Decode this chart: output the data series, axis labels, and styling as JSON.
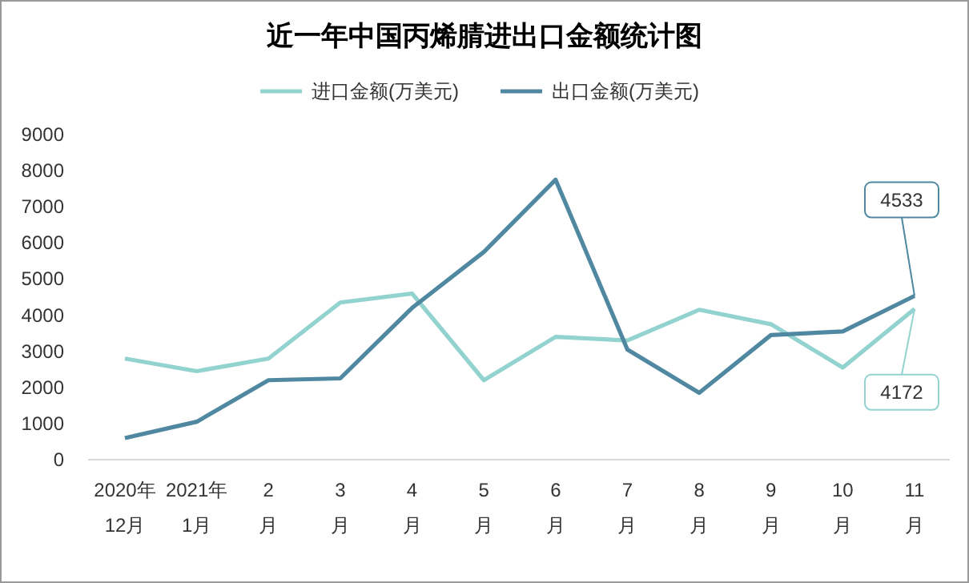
{
  "chart_data": {
    "type": "line",
    "title": "近一年中国丙烯腈进出口金额统计图",
    "categories": [
      "2020年\n12月",
      "2021年\n1月",
      "2\n月",
      "3\n月",
      "4\n月",
      "5\n月",
      "6\n月",
      "7\n月",
      "8\n月",
      "9\n月",
      "10\n月",
      "11\n月"
    ],
    "series": [
      {
        "name": "进口金额(万美元)",
        "color": "#93d3cf",
        "values": [
          2800,
          2450,
          2800,
          4350,
          4600,
          2200,
          3400,
          3300,
          4150,
          3750,
          2550,
          4172
        ],
        "value_labels": [
          null,
          null,
          null,
          null,
          null,
          null,
          null,
          null,
          null,
          null,
          null,
          "4172"
        ]
      },
      {
        "name": "出口金额(万美元)",
        "color": "#4f88a0",
        "values": [
          600,
          1050,
          2200,
          2250,
          4200,
          5750,
          7750,
          3050,
          1850,
          3450,
          3550,
          4533
        ],
        "value_labels": [
          null,
          null,
          null,
          null,
          null,
          null,
          null,
          null,
          null,
          null,
          null,
          "4533"
        ]
      }
    ],
    "ylim": [
      0,
      9000
    ],
    "yticks": [
      0,
      1000,
      2000,
      3000,
      4000,
      5000,
      6000,
      7000,
      8000,
      9000
    ],
    "grid": false,
    "legend": "top",
    "marker": "none",
    "line_style": "solid"
  }
}
